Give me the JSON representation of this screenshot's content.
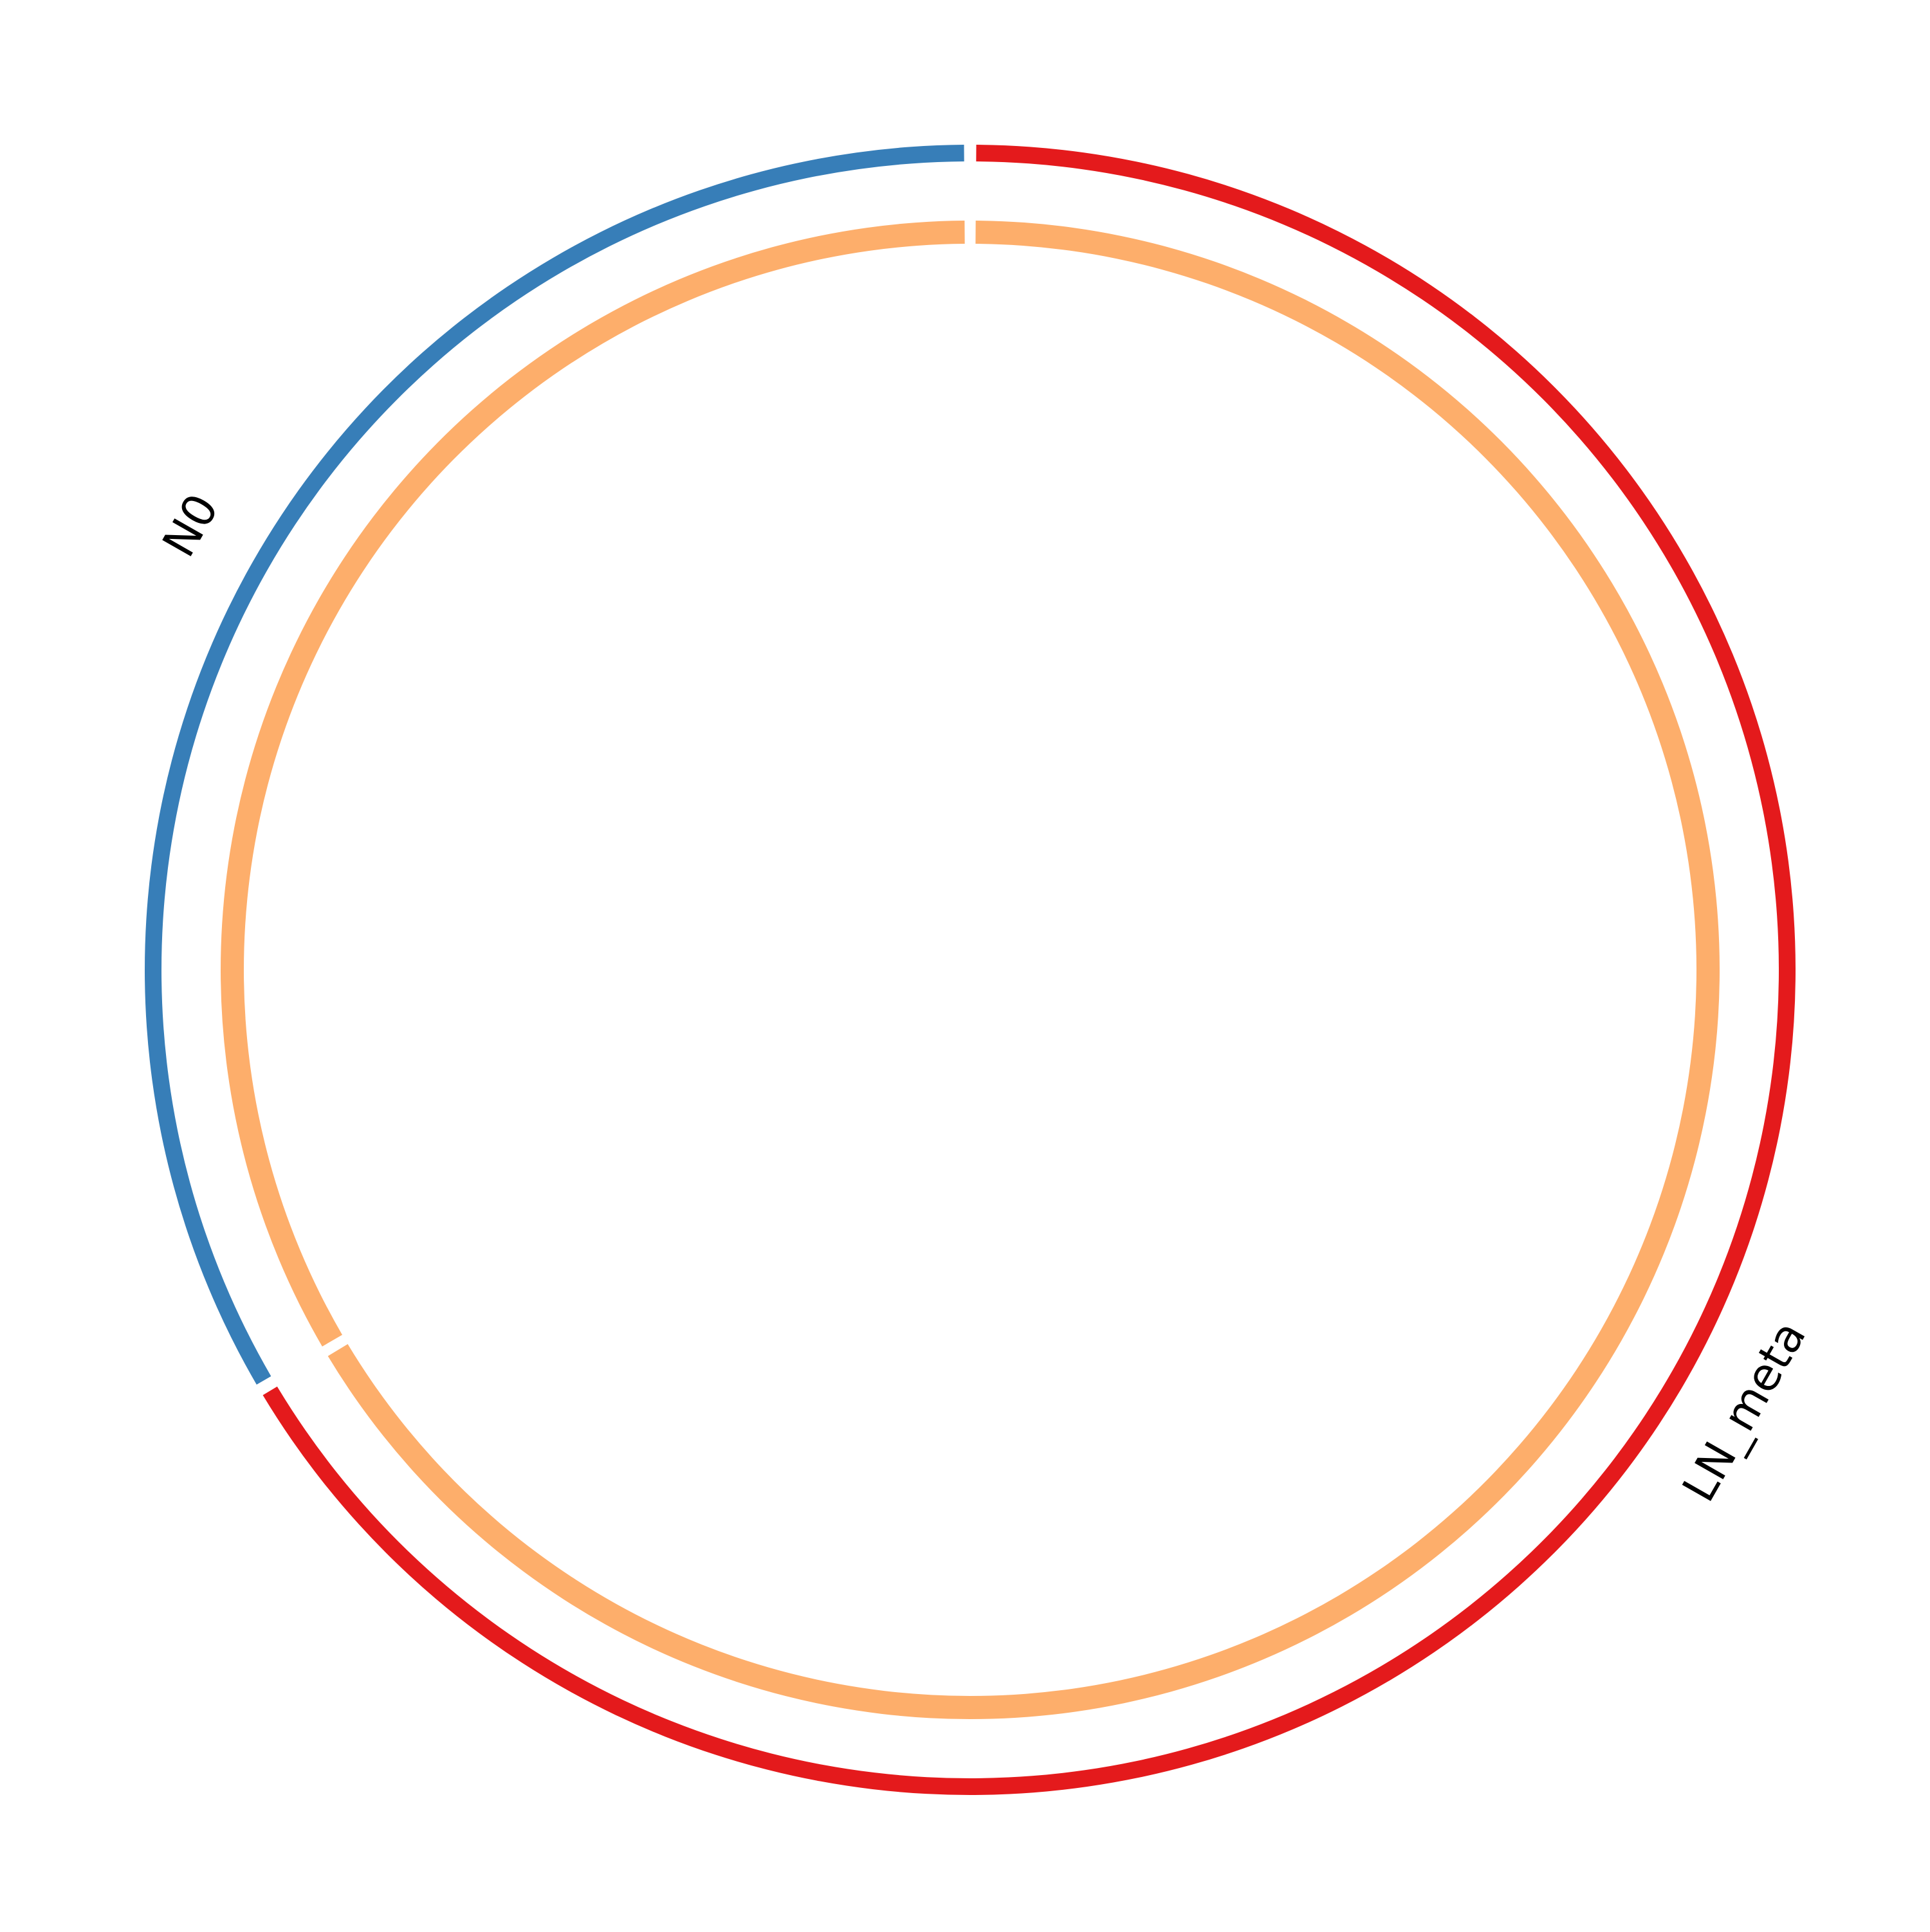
{
  "chart_data": {
    "type": "circos",
    "outer_track": {
      "segments": [
        {
          "label": "LN_meta",
          "value": 0.665,
          "color": "#e41a1c"
        },
        {
          "label": "N0",
          "value": 0.335,
          "color": "#377eb8"
        }
      ]
    },
    "inner_track": {
      "segments": [
        {
          "value": 0.665,
          "color": "#fdae6b"
        },
        {
          "value": 0.335,
          "color": "#fdae6b"
        }
      ]
    },
    "labels": [
      {
        "text": "LN_meta",
        "segment": 0
      },
      {
        "text": "N0",
        "segment": 1
      }
    ]
  }
}
